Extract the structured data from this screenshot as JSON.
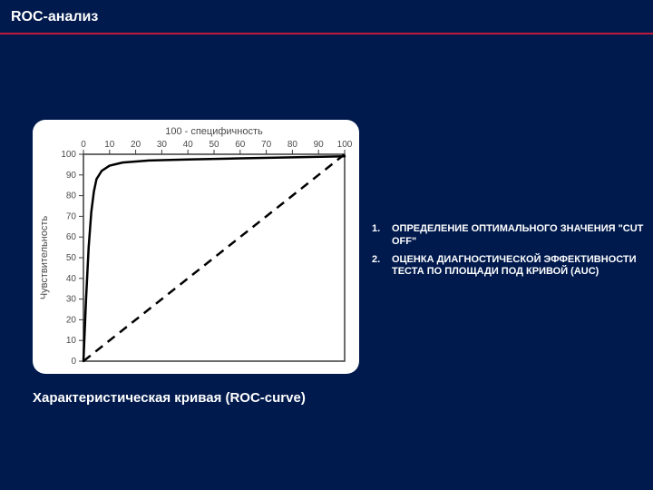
{
  "slide": {
    "background_color": "#001a4d",
    "title": "ROC-анализ",
    "title_color": "#ffffff",
    "underline_color": "#c01a3a",
    "caption": "Характеристическая кривая (ROC-curve)",
    "caption_color": "#ffffff"
  },
  "bullets": {
    "color": "#ffffff",
    "items": [
      {
        "num": "1.",
        "text": "ОПРЕДЕЛЕНИЕ ОПТИМАЛЬНОГО ЗНАЧЕНИЯ \"CUT OFF\""
      },
      {
        "num": "2.",
        "text": "ОЦЕНКА ДИАГНОСТИЧЕСКОЙ ЭФФЕКТИВНОСТИ ТЕСТА ПО ПЛОЩАДИ ПОД КРИВОЙ (AUC)"
      }
    ]
  },
  "chart": {
    "type": "line",
    "panel_bg": "#ffffff",
    "plot_bg": "#ffffff",
    "frame_stroke": "#3a3a3a",
    "frame_stroke_width": 1.5,
    "x_title": "100 - специфичность",
    "y_title": "Чувствительность",
    "title_fontsize": 11,
    "tick_fontsize": 10,
    "tick_color": "#4a4a4a",
    "xlim": [
      0,
      100
    ],
    "ylim": [
      0,
      100
    ],
    "xticks": [
      0,
      10,
      20,
      30,
      40,
      50,
      60,
      70,
      80,
      90,
      100
    ],
    "yticks": [
      0,
      10,
      20,
      30,
      40,
      50,
      60,
      70,
      80,
      90,
      100
    ],
    "roc": {
      "color": "#000000",
      "width": 2.5,
      "points": [
        [
          0,
          0
        ],
        [
          1,
          30
        ],
        [
          2,
          55
        ],
        [
          3,
          72
        ],
        [
          4,
          82
        ],
        [
          5,
          88
        ],
        [
          7,
          92
        ],
        [
          10,
          94.5
        ],
        [
          15,
          96
        ],
        [
          25,
          97
        ],
        [
          40,
          97.5
        ],
        [
          60,
          98
        ],
        [
          80,
          98.5
        ],
        [
          100,
          99
        ]
      ]
    },
    "diagonal": {
      "color": "#000000",
      "width": 2.5,
      "dash": "10 7",
      "from": [
        0,
        0
      ],
      "to": [
        100,
        100
      ]
    }
  }
}
